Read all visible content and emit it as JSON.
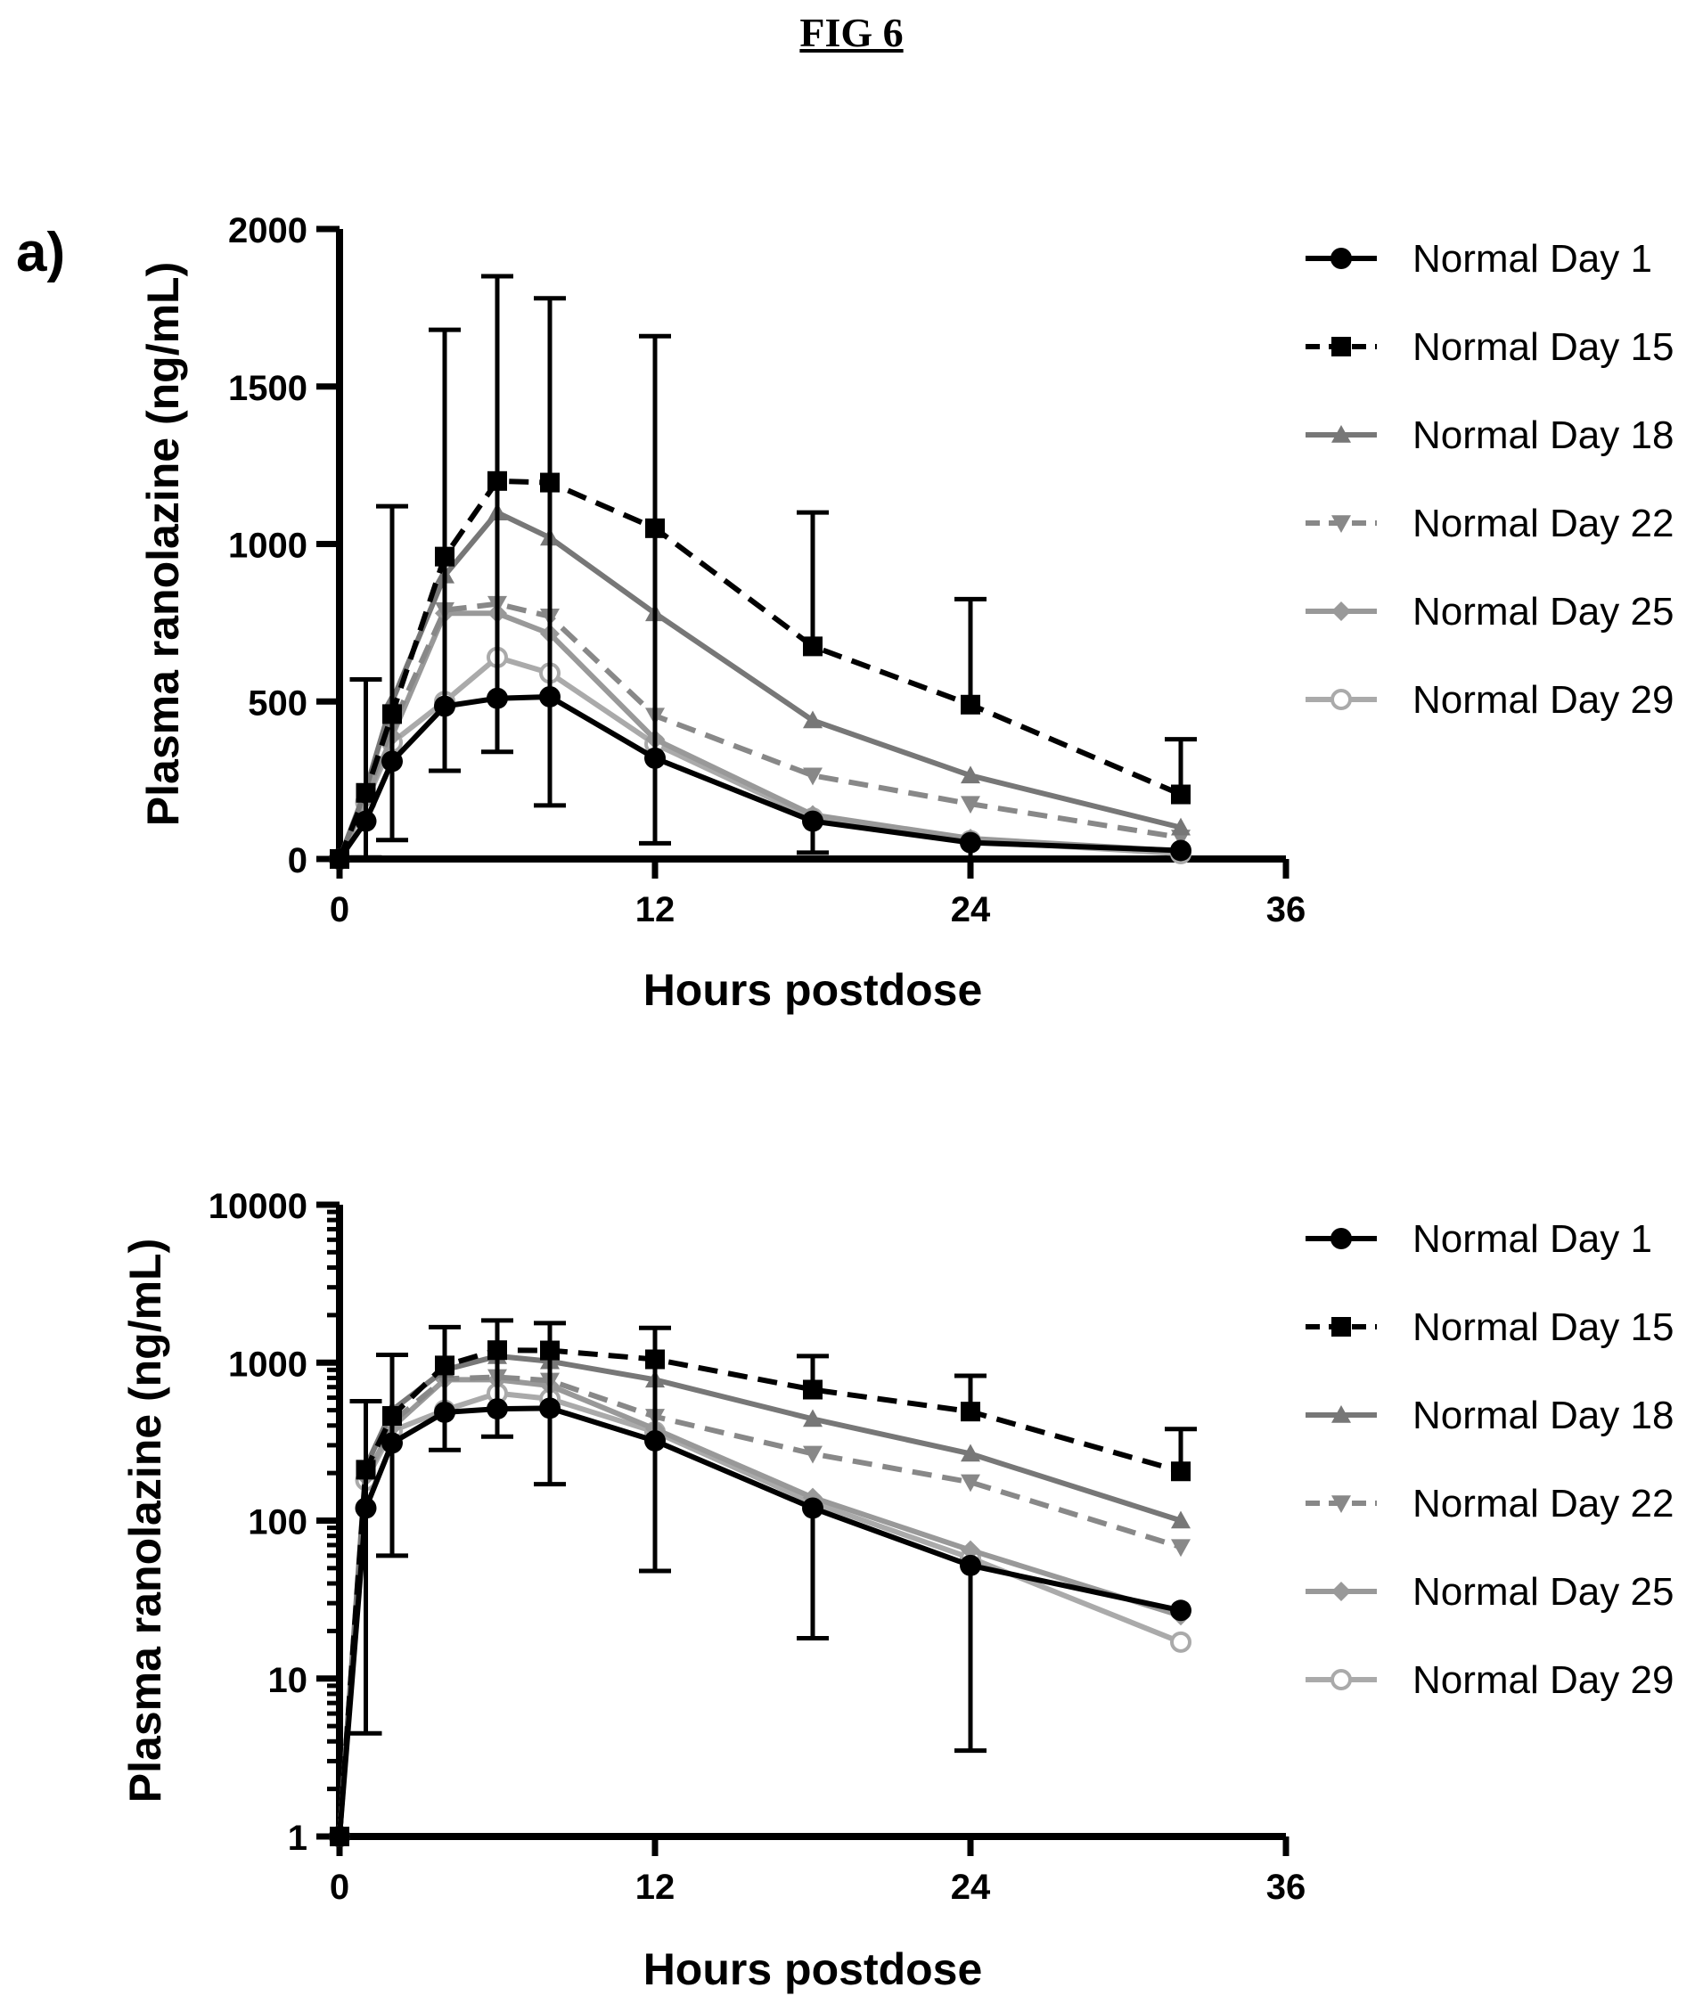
{
  "figure_title": "FIG 6",
  "panel_label": "a)",
  "chart_data": [
    {
      "type": "line",
      "yscale": "linear",
      "xlabel": "Hours postdose",
      "ylabel": "Plasma ranolazine (ng/mL)",
      "xlim": [
        0,
        36
      ],
      "ylim": [
        0,
        2000
      ],
      "xticks": [
        0,
        12,
        24,
        36
      ],
      "yticks": [
        0,
        500,
        1000,
        1500,
        2000
      ],
      "ytick_labels": [
        "0",
        "500",
        "1000",
        "1500",
        "2000"
      ],
      "grid": false,
      "legend_position": "right",
      "x": [
        0,
        1,
        2,
        4,
        6,
        8,
        12,
        18,
        24,
        32
      ],
      "series": [
        {
          "name": "Normal Day 1",
          "color": "#000000",
          "dash": "solid",
          "marker": "circle",
          "values": [
            0,
            120,
            310,
            485,
            510,
            515,
            320,
            120,
            52,
            27
          ],
          "error_upper": [
            null,
            570,
            1120,
            1680,
            1850,
            1780,
            1660,
            null,
            null,
            null
          ],
          "error_lower": [
            null,
            5,
            60,
            280,
            340,
            170,
            50,
            20,
            4,
            null
          ]
        },
        {
          "name": "Normal Day 15",
          "color": "#000000",
          "dash": "dashed",
          "marker": "square",
          "values": [
            0,
            210,
            460,
            960,
            1200,
            1195,
            1050,
            675,
            490,
            205
          ],
          "error_upper": [
            null,
            null,
            null,
            null,
            null,
            null,
            null,
            1100,
            825,
            380
          ],
          "error_lower": [
            null,
            null,
            null,
            null,
            null,
            null,
            null,
            null,
            null,
            null
          ]
        },
        {
          "name": "Normal Day 18",
          "color": "#777777",
          "dash": "solid",
          "marker": "triangle",
          "values": [
            0,
            220,
            500,
            900,
            1100,
            1020,
            780,
            440,
            265,
            100
          ]
        },
        {
          "name": "Normal Day 22",
          "color": "#888888",
          "dash": "dashed",
          "marker": "triangle-down",
          "values": [
            0,
            200,
            420,
            790,
            810,
            770,
            455,
            265,
            175,
            68
          ]
        },
        {
          "name": "Normal Day 25",
          "color": "#999999",
          "dash": "solid",
          "marker": "diamond",
          "values": [
            0,
            190,
            390,
            780,
            780,
            715,
            380,
            140,
            65,
            25
          ]
        },
        {
          "name": "Normal Day 29",
          "color": "#aaaaaa",
          "dash": "solid",
          "marker": "open-circle",
          "values": [
            0,
            180,
            370,
            500,
            640,
            590,
            365,
            130,
            58,
            17
          ]
        }
      ]
    },
    {
      "type": "line",
      "yscale": "log",
      "xlabel": "Hours postdose",
      "ylabel": "Plasma ranolazine (ng/mL)",
      "xlim": [
        0,
        36
      ],
      "ylim": [
        1,
        10000
      ],
      "xticks": [
        0,
        12,
        24,
        36
      ],
      "yticks": [
        1,
        10,
        100,
        1000,
        10000
      ],
      "ytick_labels": [
        "1",
        "10",
        "100",
        "1000",
        "10000"
      ],
      "grid": false,
      "legend_position": "right",
      "x": [
        0,
        1,
        2,
        4,
        6,
        8,
        12,
        18,
        24,
        32
      ],
      "series": [
        {
          "name": "Normal Day 1",
          "color": "#000000",
          "dash": "solid",
          "marker": "circle",
          "values": [
            1,
            120,
            310,
            485,
            510,
            515,
            320,
            120,
            52,
            27
          ],
          "error_upper": [
            null,
            570,
            1120,
            1680,
            1850,
            1780,
            1660,
            null,
            null,
            null
          ],
          "error_lower": [
            null,
            4.5,
            60,
            280,
            340,
            170,
            48,
            18,
            3.5,
            null
          ]
        },
        {
          "name": "Normal Day 15",
          "color": "#000000",
          "dash": "dashed",
          "marker": "square",
          "values": [
            1,
            210,
            460,
            960,
            1200,
            1195,
            1050,
            675,
            490,
            205
          ],
          "error_upper": [
            null,
            null,
            null,
            null,
            null,
            null,
            null,
            1100,
            825,
            380
          ],
          "error_lower": [
            null,
            null,
            null,
            null,
            null,
            null,
            null,
            null,
            null,
            null
          ]
        },
        {
          "name": "Normal Day 18",
          "color": "#777777",
          "dash": "solid",
          "marker": "triangle",
          "values": [
            1,
            220,
            500,
            900,
            1100,
            1020,
            780,
            440,
            265,
            100
          ]
        },
        {
          "name": "Normal Day 22",
          "color": "#888888",
          "dash": "dashed",
          "marker": "triangle-down",
          "values": [
            1,
            200,
            420,
            790,
            810,
            770,
            455,
            265,
            175,
            68
          ]
        },
        {
          "name": "Normal Day 25",
          "color": "#999999",
          "dash": "solid",
          "marker": "diamond",
          "values": [
            1,
            190,
            390,
            780,
            780,
            715,
            380,
            140,
            65,
            25
          ]
        },
        {
          "name": "Normal Day 29",
          "color": "#aaaaaa",
          "dash": "solid",
          "marker": "open-circle",
          "values": [
            1,
            180,
            370,
            500,
            640,
            590,
            365,
            130,
            58,
            17
          ]
        }
      ]
    }
  ]
}
